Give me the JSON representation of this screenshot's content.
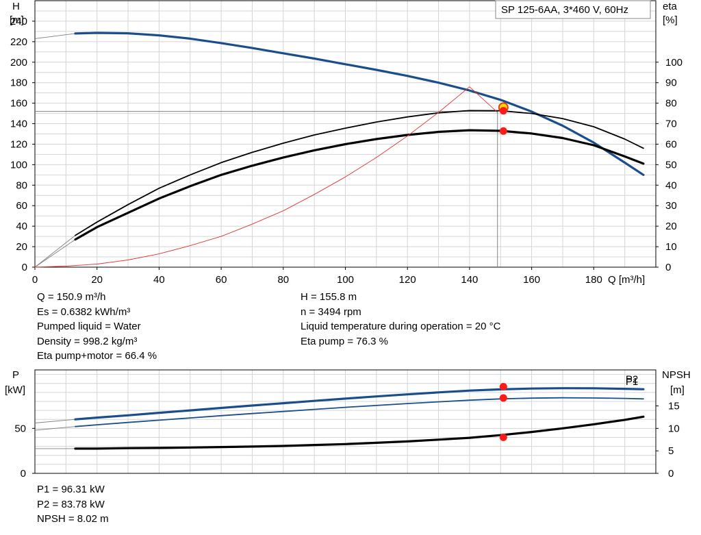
{
  "title_box": "SP 125-6AA, 3*460 V, 60Hz",
  "chart_data": [
    {
      "type": "line",
      "title": "SP 125-6AA, 3*460 V, 60Hz",
      "xlabel": "Q [m³/h]",
      "ylabel_left": [
        "H",
        "[m]"
      ],
      "ylabel_right": [
        "eta",
        "[%]"
      ],
      "xlim": [
        0,
        200
      ],
      "ylim_left": [
        0,
        260
      ],
      "ylim_right": [
        0,
        130
      ],
      "grid": true,
      "x_ticks": [
        "0",
        "20",
        "40",
        "60",
        "80",
        "100",
        "120",
        "140",
        "160",
        "180"
      ],
      "y_ticks_left": [
        "0",
        "20",
        "40",
        "60",
        "80",
        "100",
        "120",
        "140",
        "160",
        "180",
        "200",
        "220",
        "240"
      ],
      "y_ticks_right": [
        "0",
        "10",
        "20",
        "30",
        "40",
        "50",
        "60",
        "70",
        "80",
        "90",
        "100"
      ],
      "series": [
        {
          "id": "H",
          "axis": "left",
          "color": "#1a4e8a",
          "ext_x": [
            0,
            13
          ],
          "ext_y": [
            223,
            228
          ],
          "x": [
            13,
            20,
            30,
            40,
            50,
            60,
            70,
            80,
            90,
            100,
            110,
            120,
            130,
            140,
            150,
            160,
            170,
            180,
            190,
            196
          ],
          "y": [
            228,
            228.6,
            228.2,
            226.2,
            223,
            218.6,
            213.8,
            208.7,
            203.5,
            198,
            192.5,
            186.6,
            180,
            172.4,
            163.2,
            151.8,
            138,
            121.5,
            102,
            90
          ]
        },
        {
          "id": "eta_pump",
          "axis": "right",
          "color": "#000000",
          "ext_x": [
            0,
            13
          ],
          "ext_y": [
            0,
            15.5
          ],
          "x": [
            13,
            20,
            30,
            40,
            50,
            60,
            70,
            80,
            90,
            100,
            110,
            120,
            130,
            140,
            150,
            160,
            170,
            180,
            190,
            196
          ],
          "y": [
            15.5,
            22,
            30.5,
            38.5,
            45,
            51,
            56,
            60.5,
            64.5,
            67.8,
            70.8,
            73.3,
            75.3,
            76.4,
            76.3,
            75,
            72.5,
            68.5,
            62.5,
            58
          ]
        },
        {
          "id": "eta_pump_motor",
          "axis": "right",
          "color": "#000000",
          "ext_x": [
            0,
            13
          ],
          "ext_y": [
            0,
            13.5
          ],
          "x": [
            13,
            20,
            30,
            40,
            50,
            60,
            70,
            80,
            90,
            100,
            110,
            120,
            130,
            140,
            150,
            160,
            170,
            180,
            190,
            196
          ],
          "y": [
            13.5,
            19.5,
            26.5,
            33.5,
            39.5,
            45,
            49.5,
            53.5,
            57,
            60,
            62.5,
            64.5,
            66,
            66.8,
            66.5,
            65.2,
            63,
            59.5,
            54,
            50.5
          ]
        },
        {
          "id": "system",
          "axis": "left",
          "color": "#e33333",
          "x": [
            0,
            10,
            20,
            30,
            40,
            50,
            60,
            70,
            80,
            90,
            100,
            110,
            120,
            130,
            140,
            149
          ],
          "y": [
            0,
            1,
            3,
            7,
            13,
            21,
            30,
            42,
            55,
            71,
            88,
            107,
            128,
            151,
            176,
            151
          ]
        }
      ],
      "duty_point": {
        "q": 150.9,
        "h": 155.8,
        "h_line": 152,
        "eta_pump": 76.3,
        "eta_motor": 66.4
      },
      "legend_placement": "top-right"
    },
    {
      "type": "line",
      "ylabel_left": [
        "P",
        "[kW]"
      ],
      "ylabel_right": [
        "NPSH",
        "[m]"
      ],
      "xlim": [
        0,
        200
      ],
      "ylim_left": [
        0,
        115
      ],
      "ylim_right": [
        0,
        23
      ],
      "grid": true,
      "y_ticks_left": [
        "0",
        "50"
      ],
      "y_ticks_right": [
        "0",
        "5",
        "10",
        "15"
      ],
      "series": [
        {
          "id": "P1",
          "name": "P1",
          "axis": "left",
          "color": "#1a4e8a",
          "ext_x": [
            0,
            13
          ],
          "ext_y": [
            56,
            60
          ],
          "x": [
            13,
            20,
            30,
            40,
            50,
            60,
            70,
            80,
            90,
            100,
            110,
            120,
            130,
            140,
            150,
            160,
            170,
            180,
            190,
            196
          ],
          "y": [
            60,
            62,
            64.5,
            67.3,
            70,
            72.7,
            75.4,
            78,
            80.6,
            83.1,
            85.5,
            87.8,
            90,
            92,
            93.4,
            94.3,
            94.7,
            94.6,
            94,
            93.5
          ]
        },
        {
          "id": "P2",
          "name": "P2",
          "axis": "left",
          "color": "#1a4e8a",
          "ext_x": [
            0,
            13
          ],
          "ext_y": [
            48,
            52
          ],
          "x": [
            13,
            20,
            30,
            40,
            50,
            60,
            70,
            80,
            90,
            100,
            110,
            120,
            130,
            140,
            150,
            160,
            170,
            180,
            190,
            196
          ],
          "y": [
            52,
            54,
            56.6,
            59.1,
            61.6,
            64.1,
            66.5,
            68.8,
            71.1,
            73.4,
            75.5,
            77.6,
            79.5,
            81.3,
            82.8,
            83.6,
            84,
            83.8,
            83.3,
            82.8
          ]
        },
        {
          "id": "NPSH",
          "axis": "right",
          "color": "#000000",
          "ext_x": [
            0,
            13
          ],
          "ext_y": [
            5.5,
            5.5
          ],
          "x": [
            13,
            20,
            30,
            40,
            50,
            60,
            70,
            80,
            90,
            100,
            110,
            120,
            130,
            140,
            150,
            160,
            170,
            180,
            190,
            196
          ],
          "y": [
            5.5,
            5.5,
            5.6,
            5.65,
            5.75,
            5.85,
            5.95,
            6.1,
            6.3,
            6.5,
            6.8,
            7.1,
            7.5,
            7.9,
            8.5,
            9.2,
            10,
            10.9,
            11.9,
            12.6
          ]
        }
      ],
      "duty_point": {
        "q": 150.9,
        "p1": 96.31,
        "p2": 83.78,
        "npsh": 8.02
      }
    }
  ],
  "info_left": [
    "Q = 150.9 m³/h",
    "Es = 0.6382 kWh/m³",
    "Pumped liquid = Water",
    "Density = 998.2 kg/m³",
    "Eta pump+motor = 66.4 %"
  ],
  "info_right": [
    "H = 155.8 m",
    "n = 3494 rpm",
    "Liquid temperature during operation = 20 °C",
    "Eta pump = 76.3 %"
  ],
  "info_bottom": [
    "P1 = 96.31 kW",
    "P2 = 83.78 kW",
    "NPSH = 8.02 m"
  ]
}
